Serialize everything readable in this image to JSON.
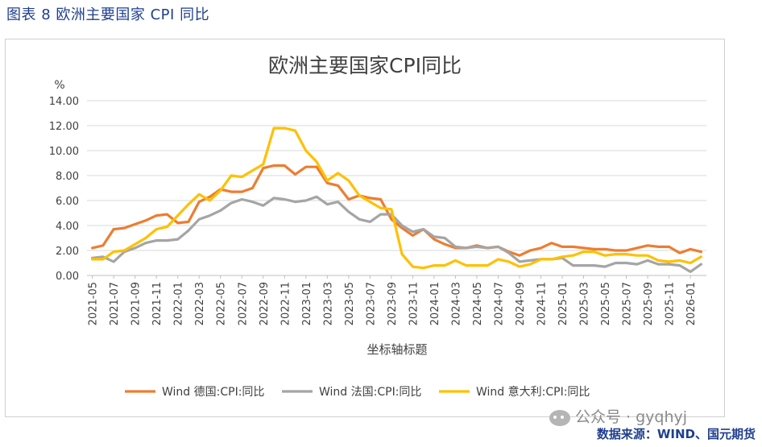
{
  "header": {
    "figure_title": "图表 8 欧洲主要国家 CPI 同比"
  },
  "footer": {
    "source": "数据来源：WIND、国元期货"
  },
  "watermark": {
    "text": "公众号 · gyqhyj"
  },
  "colors": {
    "germany": "#ED7D31",
    "france": "#A5A5A5",
    "italy": "#FFC000",
    "grid": "#d9d9d9"
  },
  "chart_data": {
    "type": "line",
    "title": "欧洲主要国家CPI同比",
    "unit_label": "%",
    "xlabel": "坐标轴标题",
    "ylabel": "%",
    "ylim": [
      0,
      14
    ],
    "yticks": [
      "0.00",
      "2.00",
      "4.00",
      "6.00",
      "8.00",
      "10.00",
      "12.00",
      "14.00"
    ],
    "grid": true,
    "legend_position": "bottom",
    "x": [
      "2021-05",
      "2021-06",
      "2021-07",
      "2021-08",
      "2021-09",
      "2021-10",
      "2021-11",
      "2021-12",
      "2022-01",
      "2022-02",
      "2022-03",
      "2022-04",
      "2022-05",
      "2022-06",
      "2022-07",
      "2022-08",
      "2022-09",
      "2022-10",
      "2022-11",
      "2022-12",
      "2023-01",
      "2023-02",
      "2023-03",
      "2023-04",
      "2023-05",
      "2023-06",
      "2023-07",
      "2023-08",
      "2023-09",
      "2023-10",
      "2023-11",
      "2023-12",
      "2024-01",
      "2024-02",
      "2024-03",
      "2024-04",
      "2024-05",
      "2024-06",
      "2024-07",
      "2024-08",
      "2024-09",
      "2024-10",
      "2024-11",
      "2024-12",
      "2025-01",
      "2025-02",
      "2025-03",
      "2025-04",
      "2025-05",
      "2025-06",
      "2025-07",
      "2025-08",
      "2025-09",
      "2025-10",
      "2025-11",
      "2025-12",
      "2026-01",
      "2026-02"
    ],
    "xtick_labels": [
      "2021-05",
      "2021-07",
      "2021-09",
      "2021-11",
      "2022-01",
      "2022-03",
      "2022-05",
      "2022-07",
      "2022-09",
      "2022-11",
      "2023-01",
      "2023-03",
      "2023-05",
      "2023-07",
      "2023-09",
      "2023-11",
      "2024-01",
      "2024-03",
      "2024-05",
      "2024-07",
      "2024-09",
      "2024-11",
      "2025-01",
      "2025-03",
      "2025-05",
      "2025-07",
      "2025-09",
      "2025-11",
      "2026-01"
    ],
    "series": [
      {
        "name": "Wind 德国:CPI:同比",
        "color": "#ED7D31",
        "values": [
          2.2,
          2.4,
          3.7,
          3.8,
          4.1,
          4.4,
          4.8,
          4.9,
          4.2,
          4.3,
          5.9,
          6.3,
          6.9,
          6.7,
          6.7,
          7.0,
          8.6,
          8.8,
          8.8,
          8.1,
          8.7,
          8.7,
          7.4,
          7.2,
          6.1,
          6.4,
          6.2,
          6.1,
          4.5,
          3.8,
          3.2,
          3.7,
          2.9,
          2.5,
          2.2,
          2.2,
          2.4,
          2.2,
          2.3,
          1.9,
          1.6,
          2.0,
          2.2,
          2.6,
          2.3,
          2.3,
          2.2,
          2.1,
          2.1,
          2.0,
          2.0,
          2.2,
          2.4,
          2.3,
          2.3,
          1.8,
          2.1,
          1.9
        ]
      },
      {
        "name": "Wind 法国:CPI:同比",
        "color": "#A5A5A5",
        "values": [
          1.4,
          1.5,
          1.1,
          1.9,
          2.2,
          2.6,
          2.8,
          2.8,
          2.9,
          3.6,
          4.5,
          4.8,
          5.2,
          5.8,
          6.1,
          5.9,
          5.6,
          6.2,
          6.1,
          5.9,
          6.0,
          6.3,
          5.7,
          5.9,
          5.1,
          4.5,
          4.3,
          4.9,
          4.9,
          4.0,
          3.5,
          3.7,
          3.1,
          3.0,
          2.3,
          2.2,
          2.3,
          2.2,
          2.3,
          1.8,
          1.1,
          1.2,
          1.3,
          1.3,
          1.4,
          0.8,
          0.8,
          0.8,
          0.7,
          1.0,
          1.0,
          0.9,
          1.2,
          0.9,
          0.9,
          0.8,
          0.3,
          0.9
        ]
      },
      {
        "name": "Wind 意大利:CPI:同比",
        "color": "#FFC000",
        "values": [
          1.3,
          1.3,
          1.9,
          2.0,
          2.5,
          3.0,
          3.7,
          3.9,
          4.8,
          5.7,
          6.5,
          6.0,
          6.8,
          8.0,
          7.9,
          8.4,
          8.9,
          11.8,
          11.8,
          11.6,
          10.0,
          9.1,
          7.6,
          8.2,
          7.6,
          6.4,
          5.9,
          5.4,
          5.3,
          1.7,
          0.7,
          0.6,
          0.8,
          0.8,
          1.2,
          0.8,
          0.8,
          0.8,
          1.3,
          1.1,
          0.7,
          0.9,
          1.3,
          1.3,
          1.5,
          1.6,
          1.9,
          1.9,
          1.6,
          1.7,
          1.7,
          1.6,
          1.6,
          1.2,
          1.1,
          1.2,
          1.0,
          1.5
        ]
      }
    ]
  }
}
